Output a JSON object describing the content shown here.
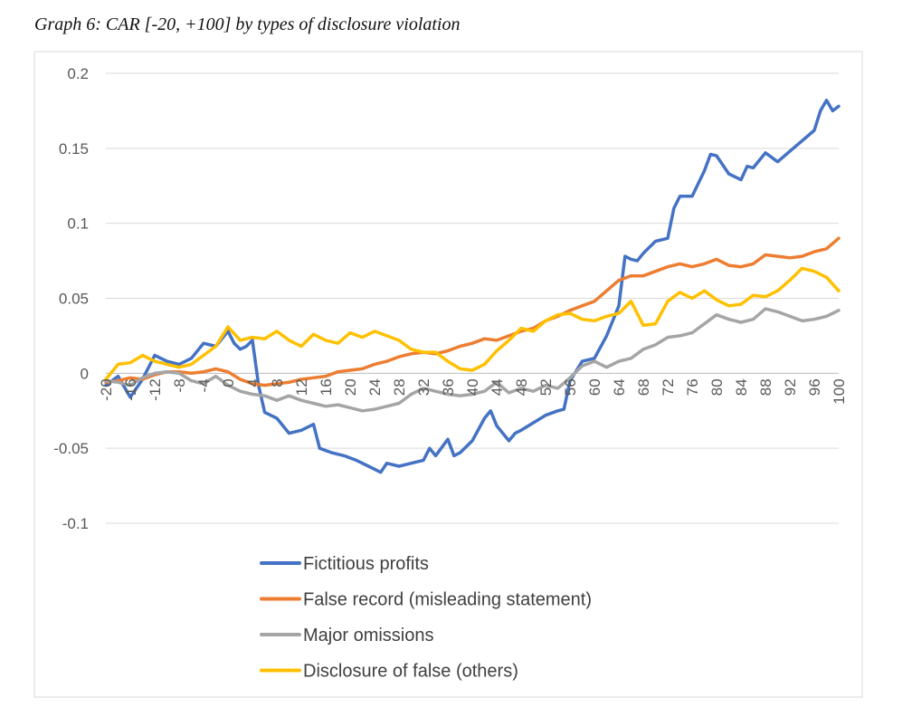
{
  "caption": "Graph 6: CAR [-20, +100] by types of disclosure violation",
  "chart_data": {
    "type": "line",
    "title": "",
    "xlabel": "",
    "ylabel": "",
    "ylim": [
      -0.1,
      0.2
    ],
    "ytick_labels": [
      "0.2",
      "0.15",
      "0.1",
      "0.05",
      "0",
      "-0.05",
      "-0.1"
    ],
    "ytick_values": [
      0.2,
      0.15,
      0.1,
      0.05,
      0,
      -0.05,
      -0.1
    ],
    "xlim": [
      -20,
      100
    ],
    "xtick_values": [
      -20,
      -16,
      -12,
      -8,
      -4,
      0,
      4,
      8,
      12,
      16,
      20,
      24,
      28,
      32,
      36,
      40,
      44,
      48,
      52,
      56,
      60,
      64,
      68,
      72,
      76,
      80,
      84,
      88,
      92,
      96,
      100
    ],
    "grid": "horizontal",
    "legend_position": "bottom",
    "series": [
      {
        "name": "Fictitious profits",
        "color": "#4472c4",
        "points": [
          [
            -20,
            -0.008
          ],
          [
            -18,
            -0.002
          ],
          [
            -16,
            -0.016
          ],
          [
            -14,
            -0.004
          ],
          [
            -12,
            0.012
          ],
          [
            -10,
            0.008
          ],
          [
            -8,
            0.006
          ],
          [
            -6,
            0.01
          ],
          [
            -4,
            0.02
          ],
          [
            -2,
            0.018
          ],
          [
            0,
            0.028
          ],
          [
            1,
            0.02
          ],
          [
            2,
            0.016
          ],
          [
            3,
            0.018
          ],
          [
            4,
            0.022
          ],
          [
            5,
            -0.008
          ],
          [
            6,
            -0.026
          ],
          [
            8,
            -0.03
          ],
          [
            10,
            -0.04
          ],
          [
            12,
            -0.038
          ],
          [
            14,
            -0.034
          ],
          [
            15,
            -0.05
          ],
          [
            17,
            -0.053
          ],
          [
            19,
            -0.055
          ],
          [
            21,
            -0.058
          ],
          [
            23,
            -0.062
          ],
          [
            25,
            -0.066
          ],
          [
            26,
            -0.06
          ],
          [
            28,
            -0.062
          ],
          [
            30,
            -0.06
          ],
          [
            32,
            -0.058
          ],
          [
            33,
            -0.05
          ],
          [
            34,
            -0.055
          ],
          [
            36,
            -0.044
          ],
          [
            37,
            -0.055
          ],
          [
            38,
            -0.053
          ],
          [
            40,
            -0.045
          ],
          [
            42,
            -0.03
          ],
          [
            43,
            -0.025
          ],
          [
            44,
            -0.035
          ],
          [
            46,
            -0.045
          ],
          [
            47,
            -0.04
          ],
          [
            48,
            -0.038
          ],
          [
            50,
            -0.033
          ],
          [
            52,
            -0.028
          ],
          [
            54,
            -0.025
          ],
          [
            55,
            -0.024
          ],
          [
            56,
            -0.005
          ],
          [
            58,
            0.008
          ],
          [
            60,
            0.01
          ],
          [
            62,
            0.025
          ],
          [
            64,
            0.045
          ],
          [
            65,
            0.078
          ],
          [
            66,
            0.076
          ],
          [
            67,
            0.075
          ],
          [
            68,
            0.08
          ],
          [
            70,
            0.088
          ],
          [
            72,
            0.09
          ],
          [
            73,
            0.11
          ],
          [
            74,
            0.118
          ],
          [
            76,
            0.118
          ],
          [
            78,
            0.135
          ],
          [
            79,
            0.146
          ],
          [
            80,
            0.145
          ],
          [
            82,
            0.133
          ],
          [
            84,
            0.129
          ],
          [
            85,
            0.138
          ],
          [
            86,
            0.137
          ],
          [
            88,
            0.147
          ],
          [
            90,
            0.141
          ],
          [
            92,
            0.148
          ],
          [
            94,
            0.155
          ],
          [
            96,
            0.162
          ],
          [
            97,
            0.175
          ],
          [
            98,
            0.182
          ],
          [
            99,
            0.175
          ],
          [
            100,
            0.178
          ]
        ]
      },
      {
        "name": "False record (misleading statement)",
        "color": "#ed7d31",
        "points": [
          [
            -20,
            -0.006
          ],
          [
            -18,
            -0.005
          ],
          [
            -16,
            -0.003
          ],
          [
            -14,
            -0.004
          ],
          [
            -12,
            -0.001
          ],
          [
            -10,
            0.001
          ],
          [
            -8,
            0.001
          ],
          [
            -6,
            0.0
          ],
          [
            -4,
            0.001
          ],
          [
            -2,
            0.003
          ],
          [
            0,
            0.001
          ],
          [
            2,
            -0.004
          ],
          [
            4,
            -0.007
          ],
          [
            6,
            -0.008
          ],
          [
            8,
            -0.007
          ],
          [
            10,
            -0.006
          ],
          [
            12,
            -0.004
          ],
          [
            14,
            -0.003
          ],
          [
            16,
            -0.002
          ],
          [
            18,
            0.001
          ],
          [
            20,
            0.002
          ],
          [
            22,
            0.003
          ],
          [
            24,
            0.006
          ],
          [
            26,
            0.008
          ],
          [
            28,
            0.011
          ],
          [
            30,
            0.013
          ],
          [
            32,
            0.014
          ],
          [
            34,
            0.013
          ],
          [
            36,
            0.015
          ],
          [
            38,
            0.018
          ],
          [
            40,
            0.02
          ],
          [
            42,
            0.023
          ],
          [
            44,
            0.022
          ],
          [
            46,
            0.025
          ],
          [
            48,
            0.028
          ],
          [
            50,
            0.03
          ],
          [
            52,
            0.035
          ],
          [
            54,
            0.038
          ],
          [
            56,
            0.042
          ],
          [
            58,
            0.045
          ],
          [
            60,
            0.048
          ],
          [
            62,
            0.055
          ],
          [
            64,
            0.062
          ],
          [
            66,
            0.065
          ],
          [
            68,
            0.065
          ],
          [
            70,
            0.068
          ],
          [
            72,
            0.071
          ],
          [
            74,
            0.073
          ],
          [
            76,
            0.071
          ],
          [
            78,
            0.073
          ],
          [
            80,
            0.076
          ],
          [
            82,
            0.072
          ],
          [
            84,
            0.071
          ],
          [
            86,
            0.073
          ],
          [
            88,
            0.079
          ],
          [
            90,
            0.078
          ],
          [
            92,
            0.077
          ],
          [
            94,
            0.078
          ],
          [
            96,
            0.081
          ],
          [
            98,
            0.083
          ],
          [
            100,
            0.09
          ]
        ]
      },
      {
        "name": "Major omissions",
        "color": "#a5a5a5",
        "points": [
          [
            -20,
            -0.005
          ],
          [
            -18,
            -0.006
          ],
          [
            -16,
            -0.008
          ],
          [
            -14,
            -0.003
          ],
          [
            -12,
            0.0
          ],
          [
            -10,
            0.001
          ],
          [
            -8,
            0.0
          ],
          [
            -6,
            -0.005
          ],
          [
            -4,
            -0.007
          ],
          [
            -2,
            -0.002
          ],
          [
            0,
            -0.008
          ],
          [
            2,
            -0.012
          ],
          [
            4,
            -0.014
          ],
          [
            6,
            -0.015
          ],
          [
            8,
            -0.018
          ],
          [
            10,
            -0.015
          ],
          [
            12,
            -0.018
          ],
          [
            14,
            -0.02
          ],
          [
            16,
            -0.022
          ],
          [
            18,
            -0.021
          ],
          [
            20,
            -0.023
          ],
          [
            22,
            -0.025
          ],
          [
            24,
            -0.024
          ],
          [
            26,
            -0.022
          ],
          [
            28,
            -0.02
          ],
          [
            30,
            -0.014
          ],
          [
            32,
            -0.01
          ],
          [
            34,
            -0.012
          ],
          [
            36,
            -0.014
          ],
          [
            38,
            -0.015
          ],
          [
            40,
            -0.014
          ],
          [
            42,
            -0.012
          ],
          [
            44,
            -0.006
          ],
          [
            46,
            -0.013
          ],
          [
            48,
            -0.01
          ],
          [
            50,
            -0.012
          ],
          [
            52,
            -0.008
          ],
          [
            54,
            -0.01
          ],
          [
            56,
            -0.003
          ],
          [
            58,
            0.005
          ],
          [
            60,
            0.008
          ],
          [
            62,
            0.004
          ],
          [
            64,
            0.008
          ],
          [
            66,
            0.01
          ],
          [
            68,
            0.016
          ],
          [
            70,
            0.019
          ],
          [
            72,
            0.024
          ],
          [
            74,
            0.025
          ],
          [
            76,
            0.027
          ],
          [
            78,
            0.033
          ],
          [
            80,
            0.039
          ],
          [
            82,
            0.036
          ],
          [
            84,
            0.034
          ],
          [
            86,
            0.036
          ],
          [
            88,
            0.043
          ],
          [
            90,
            0.041
          ],
          [
            92,
            0.038
          ],
          [
            94,
            0.035
          ],
          [
            96,
            0.036
          ],
          [
            98,
            0.038
          ],
          [
            100,
            0.042
          ]
        ]
      },
      {
        "name": "Disclosure of false (others)",
        "color": "#ffc000",
        "points": [
          [
            -20,
            -0.004
          ],
          [
            -18,
            0.006
          ],
          [
            -16,
            0.007
          ],
          [
            -14,
            0.012
          ],
          [
            -12,
            0.008
          ],
          [
            -10,
            0.006
          ],
          [
            -8,
            0.004
          ],
          [
            -6,
            0.006
          ],
          [
            -4,
            0.012
          ],
          [
            -2,
            0.018
          ],
          [
            0,
            0.031
          ],
          [
            2,
            0.022
          ],
          [
            4,
            0.024
          ],
          [
            6,
            0.023
          ],
          [
            8,
            0.028
          ],
          [
            10,
            0.022
          ],
          [
            12,
            0.018
          ],
          [
            14,
            0.026
          ],
          [
            16,
            0.022
          ],
          [
            18,
            0.02
          ],
          [
            20,
            0.027
          ],
          [
            22,
            0.024
          ],
          [
            24,
            0.028
          ],
          [
            26,
            0.025
          ],
          [
            28,
            0.022
          ],
          [
            30,
            0.016
          ],
          [
            32,
            0.014
          ],
          [
            34,
            0.014
          ],
          [
            36,
            0.008
          ],
          [
            38,
            0.003
          ],
          [
            40,
            0.002
          ],
          [
            42,
            0.006
          ],
          [
            44,
            0.015
          ],
          [
            46,
            0.022
          ],
          [
            48,
            0.03
          ],
          [
            50,
            0.028
          ],
          [
            52,
            0.035
          ],
          [
            54,
            0.039
          ],
          [
            56,
            0.04
          ],
          [
            58,
            0.036
          ],
          [
            60,
            0.035
          ],
          [
            62,
            0.038
          ],
          [
            64,
            0.04
          ],
          [
            66,
            0.048
          ],
          [
            68,
            0.032
          ],
          [
            70,
            0.033
          ],
          [
            72,
            0.048
          ],
          [
            74,
            0.054
          ],
          [
            76,
            0.05
          ],
          [
            78,
            0.055
          ],
          [
            80,
            0.049
          ],
          [
            82,
            0.045
          ],
          [
            84,
            0.046
          ],
          [
            86,
            0.052
          ],
          [
            88,
            0.051
          ],
          [
            90,
            0.055
          ],
          [
            92,
            0.062
          ],
          [
            94,
            0.07
          ],
          [
            96,
            0.068
          ],
          [
            98,
            0.064
          ],
          [
            100,
            0.055
          ]
        ]
      }
    ]
  }
}
